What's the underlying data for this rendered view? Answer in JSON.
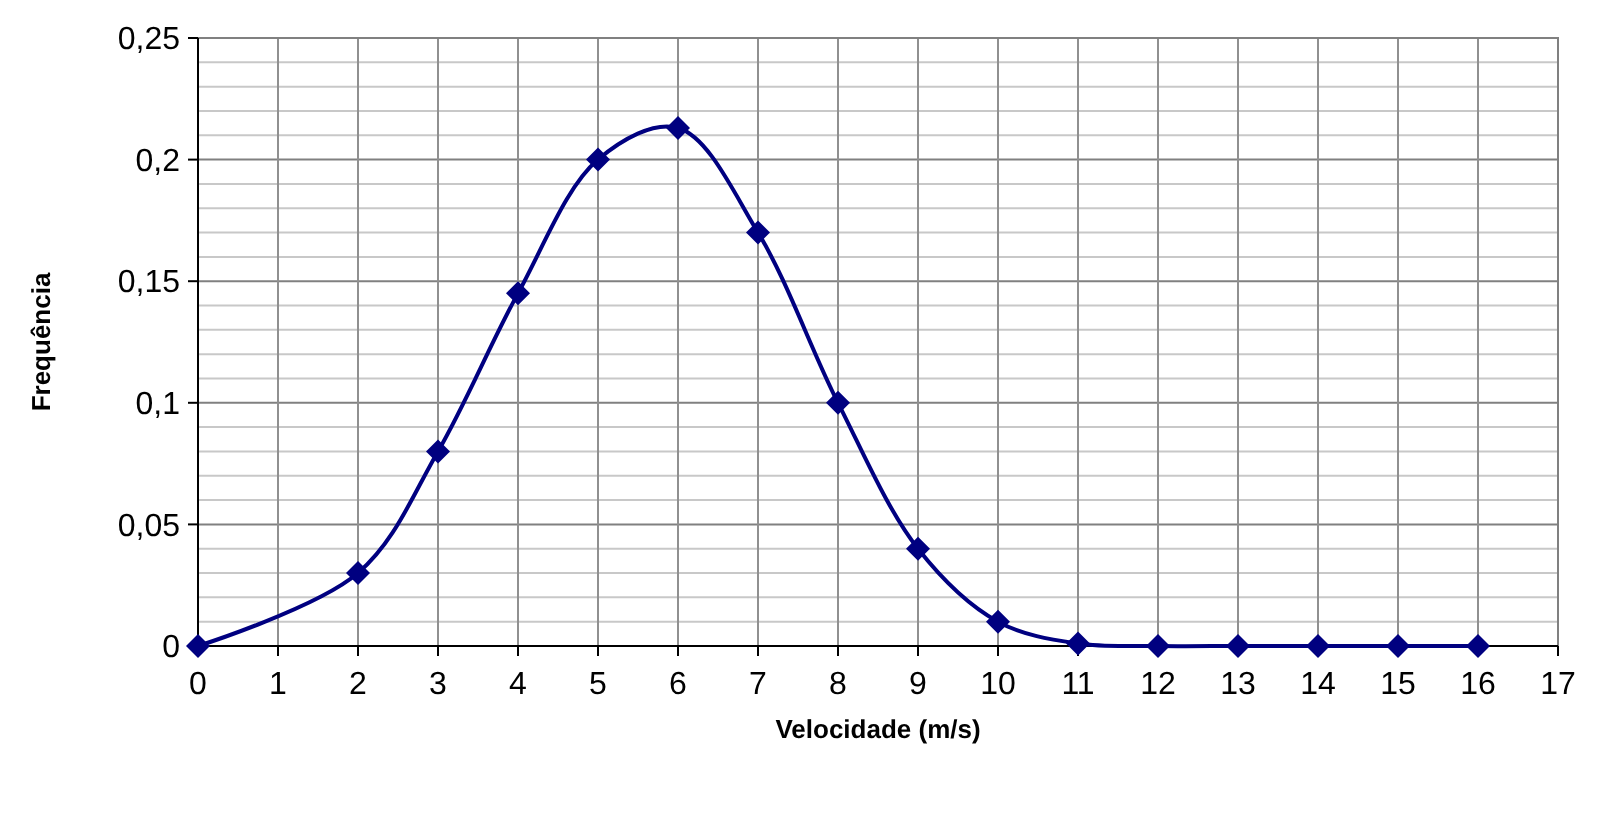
{
  "chart_data": {
    "type": "line",
    "xlabel": "Velocidade (m/s)",
    "ylabel": "Frequência",
    "x": [
      0,
      2,
      3,
      4,
      5,
      6,
      7,
      8,
      9,
      10,
      11,
      12,
      13,
      14,
      15,
      16
    ],
    "series": [
      {
        "color": "#000080",
        "values": [
          0,
          0.03,
          0.08,
          0.145,
          0.2,
          0.213,
          0.17,
          0.1,
          0.04,
          0.01,
          0.001,
          0,
          0,
          0,
          0,
          0
        ]
      }
    ],
    "xlim": [
      0,
      17
    ],
    "xticks": [
      0,
      1,
      2,
      3,
      4,
      5,
      6,
      7,
      8,
      9,
      10,
      11,
      12,
      13,
      14,
      15,
      16,
      17
    ],
    "ylim": [
      0,
      0.25
    ],
    "yticks": [
      0,
      {
        "value": 0.01,
        "label": null
      },
      {
        "value": 0.02,
        "label": null
      },
      {
        "value": 0.03,
        "label": null
      },
      {
        "value": 0.04,
        "label": null
      },
      {
        "value": 0.05,
        "label": "0,05"
      },
      {
        "value": 0.06,
        "label": null
      },
      {
        "value": 0.07,
        "label": null
      },
      {
        "value": 0.08,
        "label": null
      },
      {
        "value": 0.09,
        "label": null
      },
      {
        "value": 0.1,
        "label": "0,1"
      },
      {
        "value": 0.11,
        "label": null
      },
      {
        "value": 0.12,
        "label": null
      },
      {
        "value": 0.13,
        "label": null
      },
      {
        "value": 0.14,
        "label": null
      },
      {
        "value": 0.15,
        "label": "0,15"
      },
      {
        "value": 0.16,
        "label": null
      },
      {
        "value": 0.17,
        "label": null
      },
      {
        "value": 0.18,
        "label": null
      },
      {
        "value": 0.19,
        "label": null
      },
      {
        "value": 0.2,
        "label": "0,2"
      },
      {
        "value": 0.21,
        "label": null
      },
      {
        "value": 0.22,
        "label": null
      },
      {
        "value": 0.23,
        "label": null
      },
      {
        "value": 0.24,
        "label": null
      },
      {
        "value": 0.25,
        "label": "0,25"
      }
    ],
    "grid": true,
    "marker": "diamond",
    "line_style": "solid"
  }
}
